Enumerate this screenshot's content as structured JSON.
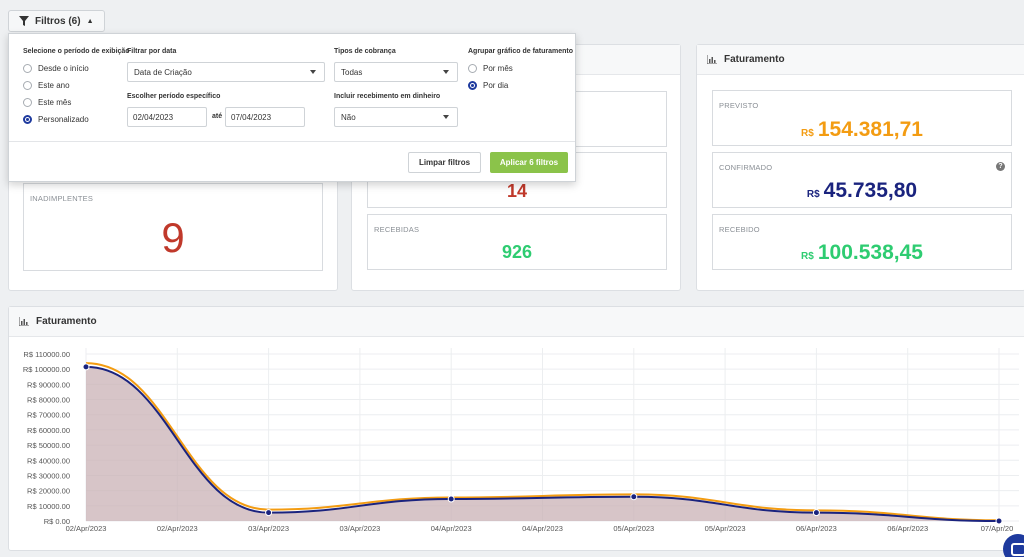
{
  "filter_button": {
    "label": "Filtros (6)"
  },
  "panel": {
    "period_title": "Selecione o período de exibição",
    "period_options": [
      {
        "label": "Desde o início",
        "selected": false
      },
      {
        "label": "Este ano",
        "selected": false
      },
      {
        "label": "Este mês",
        "selected": false
      },
      {
        "label": "Personalizado",
        "selected": true
      }
    ],
    "date_filter_title": "Filtrar por data",
    "date_filter_value": "Data de Criação",
    "period_specific_title": "Escolher período específico",
    "date_from": "02/04/2023",
    "date_to_label": "até",
    "date_to": "07/04/2023",
    "charge_types_title": "Tipos de cobrança",
    "charge_types_value": "Todas",
    "cash_title": "Incluir recebimento em dinheiro",
    "cash_value": "Não",
    "group_title": "Agrupar gráfico de faturamento",
    "group_options": [
      {
        "label": "Por mês",
        "selected": false
      },
      {
        "label": "Por dia",
        "selected": true
      }
    ],
    "clear_label": "Limpar filtros",
    "apply_label": "Aplicar 6 filtros"
  },
  "left_card": {
    "inadimplentes_label": "INADIMPLENTES",
    "inadimplentes_value": "9"
  },
  "middle_card": {
    "overdue_value": "14",
    "received_label": "RECEBIDAS",
    "received_value": "926"
  },
  "billing_card": {
    "title": "Faturamento",
    "previsto_label": "PREVISTO",
    "previsto_currency": "R$",
    "previsto_value": "154.381,71",
    "confirmado_label": "CONFIRMADO",
    "confirmado_currency": "R$",
    "confirmado_value": "45.735,80",
    "help_icon": "?",
    "recebido_label": "RECEBIDO",
    "recebido_currency": "R$",
    "recebido_value": "100.538,45"
  },
  "chart_card": {
    "title": "Faturamento"
  },
  "colors": {
    "previsto": "#f39c12",
    "confirmado": "#1a237e",
    "recebido": "#2ecc71",
    "inadimplente": "#c0392b",
    "apply": "#8bc34a"
  },
  "chart_data": {
    "type": "area",
    "title": "Faturamento",
    "x": [
      "02/Apr/2023",
      "02/Apr/2023",
      "03/Apr/2023",
      "03/Apr/2023",
      "04/Apr/2023",
      "04/Apr/2023",
      "05/Apr/2023",
      "05/Apr/2023",
      "06/Apr/2023",
      "06/Apr/2023",
      "07/Apr/20"
    ],
    "y_ticks": [
      "R$ 110000.00",
      "R$ 100000.00",
      "R$ 90000.00",
      "R$ 80000.00",
      "R$ 70000.00",
      "R$ 60000.00",
      "R$ 50000.00",
      "R$ 40000.00",
      "R$ 30000.00",
      "R$ 20000.00",
      "R$ 10000.00",
      "R$ 0.00"
    ],
    "ylim": [
      0,
      110000
    ],
    "series": [
      {
        "color": "#f39c12",
        "points": [
          [
            0,
            104000
          ],
          [
            2,
            7500
          ],
          [
            4,
            15500
          ],
          [
            6,
            17500
          ],
          [
            8,
            7000
          ],
          [
            10,
            500
          ]
        ]
      },
      {
        "color": "#1a237e",
        "points": [
          [
            0,
            101500
          ],
          [
            2,
            5500
          ],
          [
            4,
            14500
          ],
          [
            6,
            16000
          ],
          [
            8,
            5500
          ],
          [
            10,
            0
          ]
        ]
      }
    ],
    "grid": true
  }
}
